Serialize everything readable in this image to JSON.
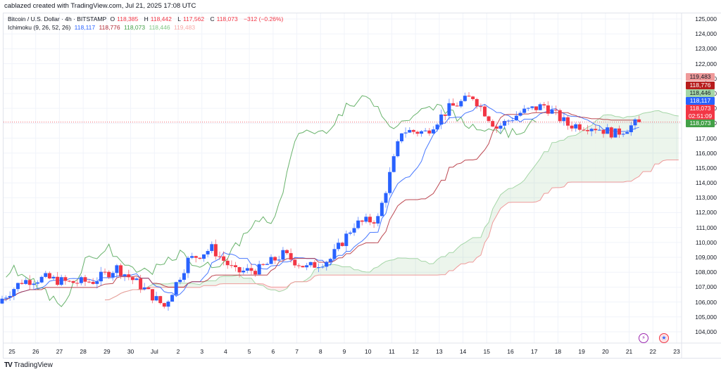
{
  "header": {
    "credit": "cablazed created with TradingView.com, Jul 21, 2025 17:08 UTC"
  },
  "legend": {
    "symbol": "Bitcoin / U.S. Dollar · 4h · BITSTAMP",
    "open_label": "O",
    "open": "118,385",
    "high_label": "H",
    "high": "118,442",
    "low_label": "L",
    "low": "117,562",
    "close_label": "C",
    "close": "118,073",
    "change": "−312 (−0.26%)",
    "indicator": "Ichimoku (9, 26, 52, 26)",
    "ind_values": [
      "118,117",
      "118,776",
      "118,073",
      "118,446",
      "119,483"
    ]
  },
  "price_tags": [
    {
      "value": "119,483",
      "color": "#ef9a9a",
      "text_color": "#131722",
      "y": 104
    },
    {
      "value": "118,776",
      "color": "#b71c1c",
      "text_color": "#ffffff",
      "y": 116
    },
    {
      "value": "118,446",
      "color": "#a5d6a7",
      "text_color": "#131722",
      "y": 127
    },
    {
      "value": "118,117",
      "color": "#2962ff",
      "text_color": "#ffffff",
      "y": 138
    },
    {
      "value": "118,073",
      "sub": "02:51:09",
      "color": "#f23645",
      "text_color": "#ffffff",
      "y": 149
    },
    {
      "value": "118,073",
      "color": "#43a047",
      "text_color": "#ffffff",
      "y": 170
    }
  ],
  "footer": {
    "logo": "TV",
    "brand": "TradingView"
  },
  "colors": {
    "up": "#2962ff",
    "down": "#f23645",
    "tenkan": "#2962ff",
    "kijun": "#b22833",
    "chikou": "#43a047",
    "span_a": "#a5d6a7",
    "span_b": "#ef9a9a",
    "cloud_bull": "rgba(67,160,71,0.10)",
    "cloud_bear": "rgba(242,54,69,0.10)",
    "grid": "#f0f3fa",
    "last_price_line": "#f23645"
  },
  "chart_data": {
    "type": "candlestick",
    "title": "Bitcoin / U.S. Dollar · 4h · BITSTAMP",
    "indicator": "Ichimoku (9, 26, 52, 26)",
    "xlabel": "",
    "ylabel": "",
    "ylim": [
      103300,
      125500
    ],
    "y_ticks": [
      104000,
      105000,
      106000,
      107000,
      108000,
      109000,
      110000,
      111000,
      112000,
      113000,
      114000,
      115000,
      116000,
      117000,
      118000,
      119000,
      120000,
      121000,
      122000,
      123000,
      124000,
      125000
    ],
    "x_ticks": [
      "25",
      "26",
      "27",
      "28",
      "29",
      "30",
      "Jul",
      "2",
      "3",
      "4",
      "5",
      "6",
      "7",
      "8",
      "9",
      "10",
      "11",
      "12",
      "13",
      "14",
      "15",
      "16",
      "17",
      "18",
      "19",
      "20",
      "21",
      "22",
      "23"
    ],
    "last_price": 118073,
    "ohlc_summary": {
      "open": 118385,
      "high": 118442,
      "low": 117562,
      "close": 118073,
      "change": -312,
      "change_pct": -0.26
    },
    "ichimoku_last": {
      "conversion": 118117,
      "base": 118776,
      "lagging": 118073,
      "lead1": 118446,
      "lead2": 119483
    },
    "daily_closes_approx": [
      {
        "day": "25",
        "close": 107400
      },
      {
        "day": "26",
        "close": 107600
      },
      {
        "day": "27",
        "close": 107300
      },
      {
        "day": "28",
        "close": 107400
      },
      {
        "day": "29",
        "close": 108300
      },
      {
        "day": "30",
        "close": 107100
      },
      {
        "day": "Jul",
        "close": 105700
      },
      {
        "day": "2",
        "close": 108800
      },
      {
        "day": "3",
        "close": 109600
      },
      {
        "day": "4",
        "close": 108000
      },
      {
        "day": "5",
        "close": 108200
      },
      {
        "day": "6",
        "close": 109200
      },
      {
        "day": "7",
        "close": 108300
      },
      {
        "day": "8",
        "close": 108900
      },
      {
        "day": "9",
        "close": 111200
      },
      {
        "day": "10",
        "close": 111600
      },
      {
        "day": "11",
        "close": 117500
      },
      {
        "day": "12",
        "close": 117400
      },
      {
        "day": "13",
        "close": 119000
      },
      {
        "day": "14",
        "close": 119800
      },
      {
        "day": "15",
        "close": 117700
      },
      {
        "day": "16",
        "close": 118700
      },
      {
        "day": "17",
        "close": 119200
      },
      {
        "day": "18",
        "close": 117900
      },
      {
        "day": "19",
        "close": 117800
      },
      {
        "day": "20",
        "close": 117300
      },
      {
        "day": "21",
        "close": 118073
      }
    ]
  }
}
